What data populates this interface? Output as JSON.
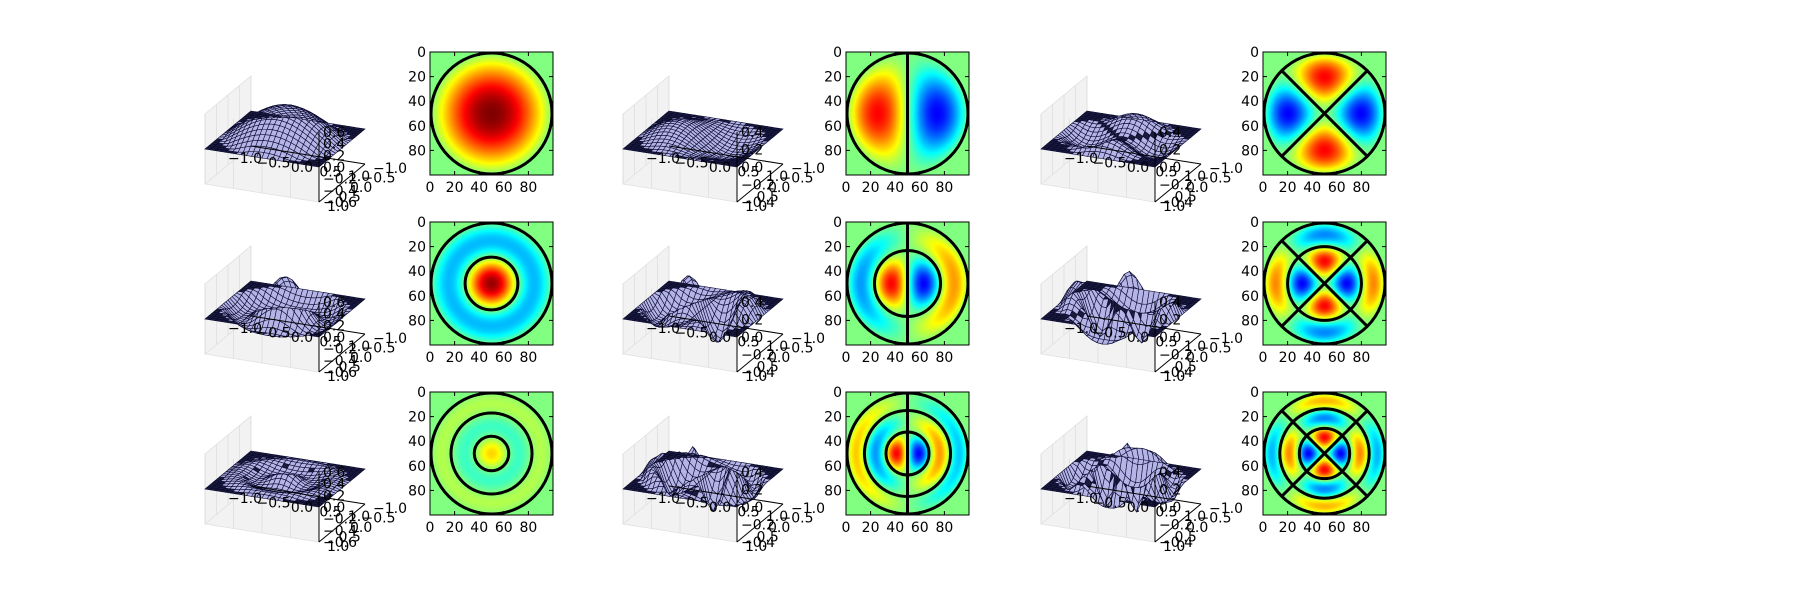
{
  "figure": {
    "rows": 3,
    "cols": 3,
    "colormap": "jet",
    "background_color": "#ffffff",
    "surface_facecolor": "#b4b4e6",
    "surface_edgecolor": "#0a0a30",
    "heatmap_outside_color": "#7fff7f",
    "nodal_line_color": "#000000"
  },
  "chart_data": [
    {
      "type": "surface",
      "modes": {
        "m": 0,
        "n": 1
      },
      "xticks": [
        "−1.0",
        "−0.5",
        "0.0",
        "0.5",
        "1.0"
      ],
      "yticks": [
        "1.0",
        "0.5",
        "0.0",
        "−0.5",
        "−1.0"
      ],
      "zticks": [
        "0.6",
        "0.4",
        "0.2",
        "0.0",
        "−0.2",
        "−0.4",
        "−0.6"
      ],
      "zlim": [
        -0.6,
        0.6
      ]
    },
    {
      "type": "heatmap",
      "modes": {
        "m": 0,
        "n": 1
      },
      "xticks": [
        "0",
        "20",
        "40",
        "60",
        "80"
      ],
      "yticks": [
        "0",
        "20",
        "40",
        "60",
        "80"
      ],
      "xlim": [
        0,
        100
      ],
      "ylim": [
        100,
        0
      ],
      "nodal_circles_fraction_of_radius": [
        1.0
      ],
      "nodal_lines_deg": []
    },
    {
      "type": "surface",
      "modes": {
        "m": 1,
        "n": 1
      },
      "xticks": [
        "−1.0",
        "−0.5",
        "0.0",
        "0.5",
        "1.0"
      ],
      "yticks": [
        "1.0",
        "0.5",
        "0.0",
        "−0.5",
        "−1.0"
      ],
      "zticks": [
        "0.4",
        "0.2",
        "0.0",
        "−0.2",
        "−0.4"
      ],
      "zlim": [
        -0.4,
        0.4
      ]
    },
    {
      "type": "heatmap",
      "modes": {
        "m": 1,
        "n": 1
      },
      "xticks": [
        "0",
        "20",
        "40",
        "60",
        "80"
      ],
      "yticks": [
        "0",
        "20",
        "40",
        "60",
        "80"
      ],
      "xlim": [
        0,
        100
      ],
      "ylim": [
        100,
        0
      ],
      "nodal_circles_fraction_of_radius": [
        1.0
      ],
      "nodal_lines_deg": [
        90
      ]
    },
    {
      "type": "surface",
      "modes": {
        "m": 2,
        "n": 1
      },
      "xticks": [
        "−1.0",
        "−0.5",
        "0.0",
        "0.5",
        "1.0"
      ],
      "yticks": [
        "1.0",
        "0.5",
        "0.0",
        "−0.5",
        "−1.0"
      ],
      "zticks": [
        "0.4",
        "0.2",
        "0.0",
        "−0.2",
        "−0.4"
      ],
      "zlim": [
        -0.4,
        0.4
      ]
    },
    {
      "type": "heatmap",
      "modes": {
        "m": 2,
        "n": 1
      },
      "xticks": [
        "0",
        "20",
        "40",
        "60",
        "80"
      ],
      "yticks": [
        "0",
        "20",
        "40",
        "60",
        "80"
      ],
      "xlim": [
        0,
        100
      ],
      "ylim": [
        100,
        0
      ],
      "nodal_circles_fraction_of_radius": [
        1.0
      ],
      "nodal_lines_deg": [
        45,
        135
      ]
    },
    {
      "type": "surface",
      "modes": {
        "m": 0,
        "n": 2
      },
      "xticks": [
        "−1.0",
        "−0.5",
        "0.0",
        "0.5",
        "1.0"
      ],
      "yticks": [
        "1.0",
        "0.5",
        "0.0",
        "−0.5",
        "−1.0"
      ],
      "zticks": [
        "0.6",
        "0.4",
        "0.2",
        "0.0",
        "−0.2",
        "−0.4",
        "−0.6"
      ],
      "zlim": [
        -0.6,
        0.6
      ]
    },
    {
      "type": "heatmap",
      "modes": {
        "m": 0,
        "n": 2
      },
      "xticks": [
        "0",
        "20",
        "40",
        "60",
        "80"
      ],
      "yticks": [
        "0",
        "20",
        "40",
        "60",
        "80"
      ],
      "xlim": [
        0,
        100
      ],
      "ylim": [
        100,
        0
      ],
      "nodal_circles_fraction_of_radius": [
        1.0,
        0.436
      ],
      "nodal_lines_deg": []
    },
    {
      "type": "surface",
      "modes": {
        "m": 1,
        "n": 2
      },
      "xticks": [
        "−1.0",
        "−0.5",
        "0.0",
        "0.5",
        "1.0"
      ],
      "yticks": [
        "1.0",
        "0.5",
        "0.0",
        "−0.5",
        "−1.0"
      ],
      "zticks": [
        "0.4",
        "0.2",
        "0.0",
        "−0.2",
        "−0.4"
      ],
      "zlim": [
        -0.4,
        0.4
      ]
    },
    {
      "type": "heatmap",
      "modes": {
        "m": 1,
        "n": 2
      },
      "xticks": [
        "0",
        "20",
        "40",
        "60",
        "80"
      ],
      "yticks": [
        "0",
        "20",
        "40",
        "60",
        "80"
      ],
      "xlim": [
        0,
        100
      ],
      "ylim": [
        100,
        0
      ],
      "nodal_circles_fraction_of_radius": [
        1.0,
        0.546
      ],
      "nodal_lines_deg": [
        90
      ]
    },
    {
      "type": "surface",
      "modes": {
        "m": 2,
        "n": 2
      },
      "xticks": [
        "−1.0",
        "−0.5",
        "0.0",
        "0.5",
        "1.0"
      ],
      "yticks": [
        "1.0",
        "0.5",
        "0.0",
        "−0.5",
        "−1.0"
      ],
      "zticks": [
        "0.4",
        "0.2",
        "0.0",
        "−0.2",
        "−0.4"
      ],
      "zlim": [
        -0.4,
        0.4
      ]
    },
    {
      "type": "heatmap",
      "modes": {
        "m": 2,
        "n": 2
      },
      "xticks": [
        "0",
        "20",
        "40",
        "60",
        "80"
      ],
      "yticks": [
        "0",
        "20",
        "40",
        "60",
        "80"
      ],
      "xlim": [
        0,
        100
      ],
      "ylim": [
        100,
        0
      ],
      "nodal_circles_fraction_of_radius": [
        1.0,
        0.61
      ],
      "nodal_lines_deg": [
        45,
        135
      ]
    },
    {
      "type": "surface",
      "modes": {
        "m": 0,
        "n": 3
      },
      "xticks": [
        "−1.0",
        "−0.5",
        "0.0",
        "0.5",
        "1.0"
      ],
      "yticks": [
        "1.0",
        "0.5",
        "0.0",
        "−0.5",
        "−1.0"
      ],
      "zticks": [
        "0.6",
        "0.4",
        "0.2",
        "0.0",
        "−0.2",
        "−0.4",
        "−0.6"
      ],
      "zlim": [
        -0.6,
        0.6
      ]
    },
    {
      "type": "heatmap",
      "modes": {
        "m": 0,
        "n": 3
      },
      "xticks": [
        "0",
        "20",
        "40",
        "60",
        "80"
      ],
      "yticks": [
        "0",
        "20",
        "40",
        "60",
        "80"
      ],
      "xlim": [
        0,
        100
      ],
      "ylim": [
        100,
        0
      ],
      "nodal_circles_fraction_of_radius": [
        1.0,
        0.6695,
        0.2848
      ],
      "nodal_lines_deg": []
    },
    {
      "type": "surface",
      "modes": {
        "m": 1,
        "n": 3
      },
      "xticks": [
        "−1.0",
        "−0.5",
        "0.0",
        "0.5",
        "1.0"
      ],
      "yticks": [
        "1.0",
        "0.5",
        "0.0",
        "−0.5",
        "−1.0"
      ],
      "zticks": [
        "0.4",
        "0.2",
        "0.0",
        "−0.2",
        "−0.4"
      ],
      "zlim": [
        -0.4,
        0.4
      ]
    },
    {
      "type": "heatmap",
      "modes": {
        "m": 1,
        "n": 3
      },
      "xticks": [
        "0",
        "20",
        "40",
        "60",
        "80"
      ],
      "yticks": [
        "0",
        "20",
        "40",
        "60",
        "80"
      ],
      "xlim": [
        0,
        100
      ],
      "ylim": [
        100,
        0
      ],
      "nodal_circles_fraction_of_radius": [
        1.0,
        0.7116,
        0.3554
      ],
      "nodal_lines_deg": [
        90
      ]
    },
    {
      "type": "surface",
      "modes": {
        "m": 2,
        "n": 3
      },
      "xticks": [
        "−1.0",
        "−0.5",
        "0.0",
        "0.5",
        "1.0"
      ],
      "yticks": [
        "1.0",
        "0.5",
        "0.0",
        "−0.5",
        "−1.0"
      ],
      "zticks": [
        "0.4",
        "0.2",
        "0.0",
        "−0.2",
        "−0.4"
      ],
      "zlim": [
        -0.4,
        0.4
      ]
    },
    {
      "type": "heatmap",
      "modes": {
        "m": 2,
        "n": 3
      },
      "xticks": [
        "0",
        "20",
        "40",
        "60",
        "80"
      ],
      "yticks": [
        "0",
        "20",
        "40",
        "60",
        "80"
      ],
      "xlim": [
        0,
        100
      ],
      "ylim": [
        100,
        0
      ],
      "nodal_circles_fraction_of_radius": [
        1.0,
        0.7391,
        0.4153
      ],
      "nodal_lines_deg": [
        45,
        135
      ]
    }
  ]
}
